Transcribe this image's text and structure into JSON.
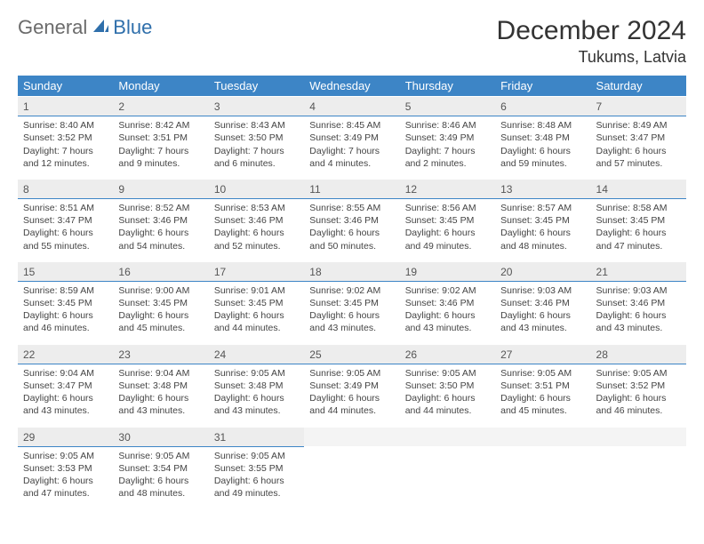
{
  "brand": {
    "part1": "General",
    "part2": "Blue"
  },
  "title": "December 2024",
  "location": "Tukums, Latvia",
  "colors": {
    "header_bg": "#3d85c6",
    "header_fg": "#ffffff",
    "daynum_bg": "#ededed",
    "daynum_border": "#3d85c6",
    "logo_gray": "#6b6b6b",
    "logo_blue": "#2f6fab"
  },
  "weekdays": [
    "Sunday",
    "Monday",
    "Tuesday",
    "Wednesday",
    "Thursday",
    "Friday",
    "Saturday"
  ],
  "weeks": [
    [
      {
        "n": "1",
        "sr": "Sunrise: 8:40 AM",
        "ss": "Sunset: 3:52 PM",
        "dl": "Daylight: 7 hours and 12 minutes."
      },
      {
        "n": "2",
        "sr": "Sunrise: 8:42 AM",
        "ss": "Sunset: 3:51 PM",
        "dl": "Daylight: 7 hours and 9 minutes."
      },
      {
        "n": "3",
        "sr": "Sunrise: 8:43 AM",
        "ss": "Sunset: 3:50 PM",
        "dl": "Daylight: 7 hours and 6 minutes."
      },
      {
        "n": "4",
        "sr": "Sunrise: 8:45 AM",
        "ss": "Sunset: 3:49 PM",
        "dl": "Daylight: 7 hours and 4 minutes."
      },
      {
        "n": "5",
        "sr": "Sunrise: 8:46 AM",
        "ss": "Sunset: 3:49 PM",
        "dl": "Daylight: 7 hours and 2 minutes."
      },
      {
        "n": "6",
        "sr": "Sunrise: 8:48 AM",
        "ss": "Sunset: 3:48 PM",
        "dl": "Daylight: 6 hours and 59 minutes."
      },
      {
        "n": "7",
        "sr": "Sunrise: 8:49 AM",
        "ss": "Sunset: 3:47 PM",
        "dl": "Daylight: 6 hours and 57 minutes."
      }
    ],
    [
      {
        "n": "8",
        "sr": "Sunrise: 8:51 AM",
        "ss": "Sunset: 3:47 PM",
        "dl": "Daylight: 6 hours and 55 minutes."
      },
      {
        "n": "9",
        "sr": "Sunrise: 8:52 AM",
        "ss": "Sunset: 3:46 PM",
        "dl": "Daylight: 6 hours and 54 minutes."
      },
      {
        "n": "10",
        "sr": "Sunrise: 8:53 AM",
        "ss": "Sunset: 3:46 PM",
        "dl": "Daylight: 6 hours and 52 minutes."
      },
      {
        "n": "11",
        "sr": "Sunrise: 8:55 AM",
        "ss": "Sunset: 3:46 PM",
        "dl": "Daylight: 6 hours and 50 minutes."
      },
      {
        "n": "12",
        "sr": "Sunrise: 8:56 AM",
        "ss": "Sunset: 3:45 PM",
        "dl": "Daylight: 6 hours and 49 minutes."
      },
      {
        "n": "13",
        "sr": "Sunrise: 8:57 AM",
        "ss": "Sunset: 3:45 PM",
        "dl": "Daylight: 6 hours and 48 minutes."
      },
      {
        "n": "14",
        "sr": "Sunrise: 8:58 AM",
        "ss": "Sunset: 3:45 PM",
        "dl": "Daylight: 6 hours and 47 minutes."
      }
    ],
    [
      {
        "n": "15",
        "sr": "Sunrise: 8:59 AM",
        "ss": "Sunset: 3:45 PM",
        "dl": "Daylight: 6 hours and 46 minutes."
      },
      {
        "n": "16",
        "sr": "Sunrise: 9:00 AM",
        "ss": "Sunset: 3:45 PM",
        "dl": "Daylight: 6 hours and 45 minutes."
      },
      {
        "n": "17",
        "sr": "Sunrise: 9:01 AM",
        "ss": "Sunset: 3:45 PM",
        "dl": "Daylight: 6 hours and 44 minutes."
      },
      {
        "n": "18",
        "sr": "Sunrise: 9:02 AM",
        "ss": "Sunset: 3:45 PM",
        "dl": "Daylight: 6 hours and 43 minutes."
      },
      {
        "n": "19",
        "sr": "Sunrise: 9:02 AM",
        "ss": "Sunset: 3:46 PM",
        "dl": "Daylight: 6 hours and 43 minutes."
      },
      {
        "n": "20",
        "sr": "Sunrise: 9:03 AM",
        "ss": "Sunset: 3:46 PM",
        "dl": "Daylight: 6 hours and 43 minutes."
      },
      {
        "n": "21",
        "sr": "Sunrise: 9:03 AM",
        "ss": "Sunset: 3:46 PM",
        "dl": "Daylight: 6 hours and 43 minutes."
      }
    ],
    [
      {
        "n": "22",
        "sr": "Sunrise: 9:04 AM",
        "ss": "Sunset: 3:47 PM",
        "dl": "Daylight: 6 hours and 43 minutes."
      },
      {
        "n": "23",
        "sr": "Sunrise: 9:04 AM",
        "ss": "Sunset: 3:48 PM",
        "dl": "Daylight: 6 hours and 43 minutes."
      },
      {
        "n": "24",
        "sr": "Sunrise: 9:05 AM",
        "ss": "Sunset: 3:48 PM",
        "dl": "Daylight: 6 hours and 43 minutes."
      },
      {
        "n": "25",
        "sr": "Sunrise: 9:05 AM",
        "ss": "Sunset: 3:49 PM",
        "dl": "Daylight: 6 hours and 44 minutes."
      },
      {
        "n": "26",
        "sr": "Sunrise: 9:05 AM",
        "ss": "Sunset: 3:50 PM",
        "dl": "Daylight: 6 hours and 44 minutes."
      },
      {
        "n": "27",
        "sr": "Sunrise: 9:05 AM",
        "ss": "Sunset: 3:51 PM",
        "dl": "Daylight: 6 hours and 45 minutes."
      },
      {
        "n": "28",
        "sr": "Sunrise: 9:05 AM",
        "ss": "Sunset: 3:52 PM",
        "dl": "Daylight: 6 hours and 46 minutes."
      }
    ],
    [
      {
        "n": "29",
        "sr": "Sunrise: 9:05 AM",
        "ss": "Sunset: 3:53 PM",
        "dl": "Daylight: 6 hours and 47 minutes."
      },
      {
        "n": "30",
        "sr": "Sunrise: 9:05 AM",
        "ss": "Sunset: 3:54 PM",
        "dl": "Daylight: 6 hours and 48 minutes."
      },
      {
        "n": "31",
        "sr": "Sunrise: 9:05 AM",
        "ss": "Sunset: 3:55 PM",
        "dl": "Daylight: 6 hours and 49 minutes."
      },
      null,
      null,
      null,
      null
    ]
  ]
}
